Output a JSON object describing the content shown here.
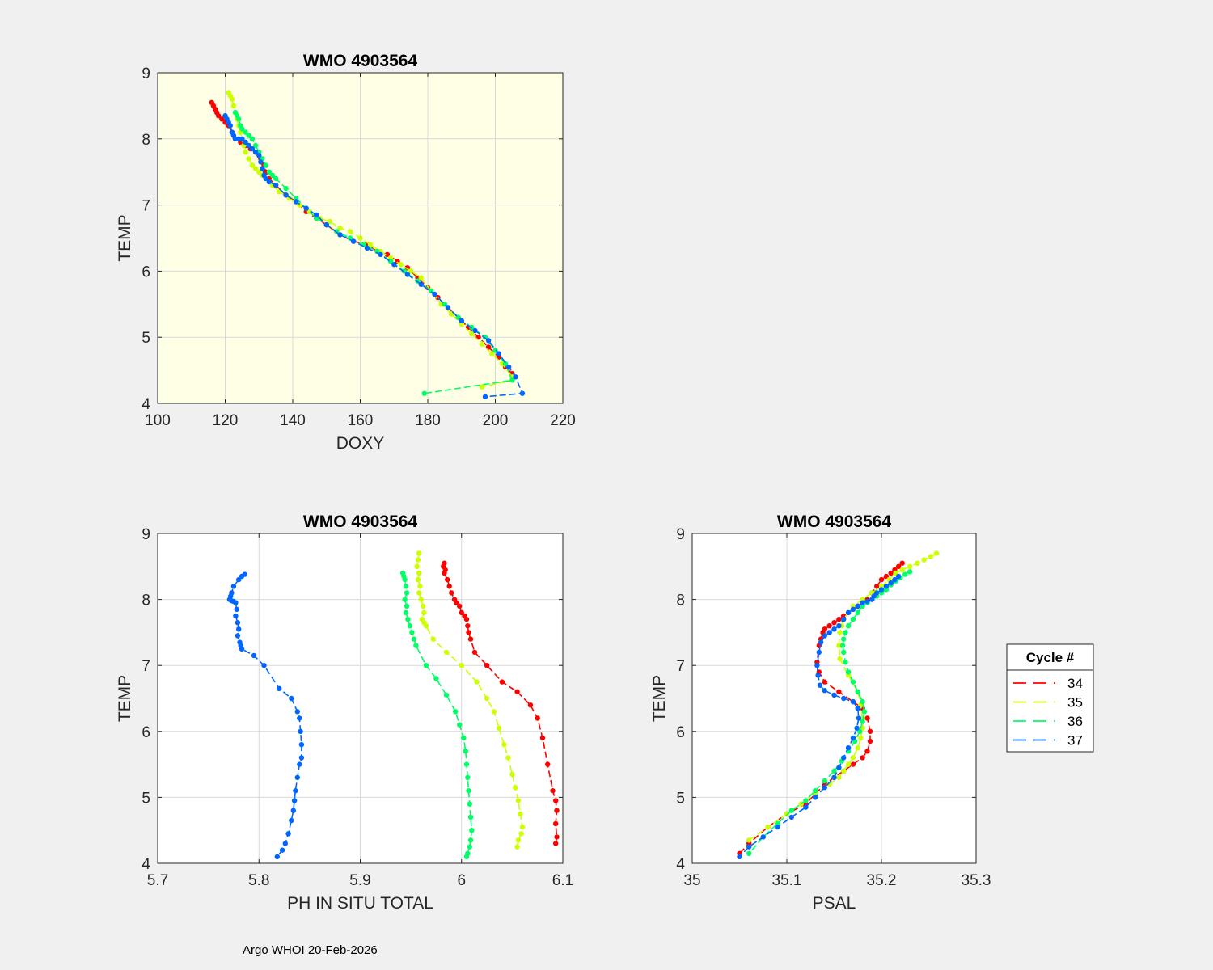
{
  "footer": "Argo WHOI 20-Feb-2026",
  "legend": {
    "title": "Cycle #",
    "entries": [
      {
        "label": "34",
        "color": "#ff0000"
      },
      {
        "label": "35",
        "color": "#ccff00"
      },
      {
        "label": "36",
        "color": "#00ff66"
      },
      {
        "label": "37",
        "color": "#0066ff"
      }
    ]
  },
  "chart_data": [
    {
      "type": "line",
      "title": "WMO 4903564",
      "xlabel": "DOXY",
      "ylabel": "TEMP",
      "xlim": [
        100,
        220
      ],
      "ylim": [
        4,
        9
      ],
      "xticks": [
        100,
        120,
        140,
        160,
        180,
        200,
        220
      ],
      "yticks": [
        4,
        5,
        6,
        7,
        8,
        9
      ],
      "grid": true,
      "background": "#ffffe6",
      "series": [
        {
          "name": "34",
          "color": "#ff0000",
          "x": [
            116,
            116.5,
            117,
            117.5,
            118,
            119,
            120,
            121,
            122,
            123,
            124.5,
            126,
            127.5,
            129,
            130.5,
            131.5,
            132,
            133,
            135,
            138,
            141,
            144,
            147,
            150,
            154,
            158,
            162,
            165,
            168,
            171,
            174,
            177,
            180,
            183,
            186,
            189,
            192,
            195,
            198,
            201,
            203,
            205
          ],
          "y": [
            8.55,
            8.5,
            8.45,
            8.4,
            8.35,
            8.3,
            8.25,
            8.2,
            8.1,
            8.0,
            7.95,
            7.9,
            7.85,
            7.8,
            7.7,
            7.6,
            7.5,
            7.4,
            7.3,
            7.15,
            7.05,
            6.9,
            6.8,
            6.7,
            6.55,
            6.45,
            6.4,
            6.3,
            6.25,
            6.15,
            6.05,
            5.9,
            5.75,
            5.6,
            5.45,
            5.3,
            5.15,
            5.0,
            4.85,
            4.7,
            4.55,
            4.45
          ]
        },
        {
          "name": "35",
          "color": "#ccff00",
          "x": [
            121,
            121.5,
            122,
            122.5,
            123,
            123.5,
            124,
            124.5,
            125,
            125.5,
            126,
            127,
            128,
            129,
            130,
            131,
            132,
            134,
            136,
            139,
            142,
            145,
            148,
            151,
            154,
            157,
            160,
            163,
            166,
            169,
            172,
            175,
            178,
            181,
            184,
            187,
            190,
            193,
            196,
            199,
            202,
            205,
            205,
            196
          ],
          "y": [
            8.7,
            8.65,
            8.6,
            8.5,
            8.4,
            8.3,
            8.2,
            8.1,
            8.0,
            7.9,
            7.8,
            7.7,
            7.6,
            7.55,
            7.5,
            7.45,
            7.4,
            7.3,
            7.2,
            7.1,
            7.0,
            6.9,
            6.8,
            6.75,
            6.65,
            6.6,
            6.5,
            6.4,
            6.3,
            6.2,
            6.1,
            6.0,
            5.9,
            5.7,
            5.5,
            5.35,
            5.2,
            5.05,
            4.9,
            4.75,
            4.6,
            4.4,
            4.35,
            4.25
          ]
        },
        {
          "name": "36",
          "color": "#00ff66",
          "x": [
            123,
            123.5,
            124,
            124.5,
            125,
            126,
            127,
            128,
            129,
            130,
            131,
            132,
            133,
            134,
            135,
            138,
            141,
            144,
            147,
            150,
            153,
            157,
            161,
            165,
            169,
            173,
            177,
            181,
            185,
            189,
            193,
            197,
            200,
            203,
            205,
            179
          ],
          "y": [
            8.4,
            8.35,
            8.3,
            8.2,
            8.15,
            8.1,
            8.05,
            8.0,
            7.9,
            7.8,
            7.7,
            7.6,
            7.5,
            7.45,
            7.4,
            7.25,
            7.1,
            6.95,
            6.8,
            6.7,
            6.6,
            6.5,
            6.4,
            6.3,
            6.15,
            6.0,
            5.85,
            5.7,
            5.5,
            5.3,
            5.15,
            5.0,
            4.8,
            4.6,
            4.35,
            4.15
          ]
        },
        {
          "name": "37",
          "color": "#0066ff",
          "x": [
            120,
            120.5,
            121,
            121.5,
            122,
            122.5,
            123,
            124,
            125,
            126,
            127,
            128,
            129,
            130,
            130.5,
            131,
            131.5,
            132,
            133,
            135,
            138,
            141,
            144,
            147,
            150,
            154,
            158,
            162,
            166,
            170,
            174,
            178,
            182,
            186,
            190,
            194,
            198,
            201,
            204,
            206,
            208,
            197
          ],
          "y": [
            8.35,
            8.3,
            8.25,
            8.2,
            8.1,
            8.05,
            8.0,
            8.0,
            8.0,
            7.95,
            7.9,
            7.85,
            7.8,
            7.75,
            7.65,
            7.55,
            7.45,
            7.4,
            7.35,
            7.3,
            7.15,
            7.05,
            6.95,
            6.85,
            6.7,
            6.55,
            6.45,
            6.35,
            6.25,
            6.1,
            5.95,
            5.8,
            5.65,
            5.45,
            5.25,
            5.1,
            4.95,
            4.75,
            4.55,
            4.4,
            4.15,
            4.1
          ]
        }
      ]
    },
    {
      "type": "line",
      "title": "WMO 4903564",
      "xlabel": "PH IN SITU TOTAL",
      "ylabel": "TEMP",
      "xlim": [
        5.7,
        6.1
      ],
      "ylim": [
        4,
        9
      ],
      "xticks": [
        5.7,
        5.8,
        5.9,
        6.0,
        6.1
      ],
      "yticks": [
        4,
        5,
        6,
        7,
        8,
        9
      ],
      "grid": true,
      "background": "#ffffff",
      "series": [
        {
          "name": "34",
          "color": "#ff0000",
          "x": [
            5.983,
            5.982,
            5.984,
            5.983,
            5.986,
            5.988,
            5.99,
            5.993,
            5.995,
            5.998,
            6.0,
            6.003,
            6.005,
            6.006,
            6.007,
            6.009,
            6.013,
            6.025,
            6.04,
            6.055,
            6.068,
            6.075,
            6.08,
            6.085,
            6.09,
            6.093,
            6.094,
            6.093,
            6.094,
            6.093
          ],
          "y": [
            8.55,
            8.5,
            8.45,
            8.4,
            8.3,
            8.2,
            8.1,
            8.0,
            7.95,
            7.9,
            7.8,
            7.75,
            7.7,
            7.6,
            7.5,
            7.4,
            7.2,
            7.0,
            6.75,
            6.6,
            6.4,
            6.2,
            5.9,
            5.5,
            5.1,
            4.95,
            4.8,
            4.6,
            4.4,
            4.3
          ]
        },
        {
          "name": "35",
          "color": "#ccff00",
          "x": [
            5.958,
            5.957,
            5.956,
            5.958,
            5.957,
            5.959,
            5.958,
            5.96,
            5.962,
            5.963,
            5.961,
            5.963,
            5.965,
            5.972,
            5.985,
            6.0,
            6.015,
            6.025,
            6.032,
            6.037,
            6.042,
            6.046,
            6.05,
            6.053,
            6.056,
            6.058,
            6.06,
            6.059,
            6.056,
            6.055
          ],
          "y": [
            8.7,
            8.6,
            8.5,
            8.4,
            8.3,
            8.2,
            8.1,
            8.0,
            7.9,
            7.8,
            7.7,
            7.65,
            7.6,
            7.4,
            7.2,
            7.0,
            6.75,
            6.5,
            6.3,
            6.05,
            5.8,
            5.6,
            5.35,
            5.15,
            4.95,
            4.75,
            4.55,
            4.45,
            4.35,
            4.25
          ]
        },
        {
          "name": "36",
          "color": "#00ff66",
          "x": [
            5.942,
            5.943,
            5.944,
            5.945,
            5.946,
            5.944,
            5.946,
            5.945,
            5.947,
            5.949,
            5.951,
            5.953,
            5.955,
            5.965,
            5.975,
            5.985,
            5.994,
            5.998,
            6.002,
            6.004,
            6.005,
            6.006,
            6.007,
            6.008,
            6.009,
            6.01,
            6.009,
            6.008,
            6.006,
            6.005
          ],
          "y": [
            8.4,
            8.35,
            8.3,
            8.2,
            8.1,
            8.0,
            7.9,
            7.8,
            7.7,
            7.6,
            7.5,
            7.4,
            7.3,
            7.0,
            6.8,
            6.55,
            6.3,
            6.1,
            5.9,
            5.7,
            5.5,
            5.3,
            5.1,
            4.9,
            4.7,
            4.5,
            4.35,
            4.25,
            4.15,
            4.1
          ]
        },
        {
          "name": "37",
          "color": "#0066ff",
          "x": [
            5.786,
            5.783,
            5.78,
            5.775,
            5.773,
            5.772,
            5.771,
            5.773,
            5.775,
            5.777,
            5.778,
            5.777,
            5.779,
            5.78,
            5.779,
            5.781,
            5.782,
            5.783,
            5.795,
            5.805,
            5.82,
            5.832,
            5.838,
            5.84,
            5.841,
            5.842,
            5.842,
            5.84,
            5.838,
            5.836,
            5.835,
            5.834,
            5.832,
            5.829,
            5.826,
            5.823,
            5.818
          ],
          "y": [
            8.38,
            8.35,
            8.3,
            8.2,
            8.1,
            8.05,
            8.0,
            7.98,
            7.97,
            7.95,
            7.85,
            7.75,
            7.65,
            7.55,
            7.45,
            7.35,
            7.3,
            7.25,
            7.15,
            7.0,
            6.65,
            6.5,
            6.3,
            6.2,
            6.0,
            5.8,
            5.6,
            5.5,
            5.3,
            5.1,
            4.95,
            4.8,
            4.65,
            4.45,
            4.3,
            4.2,
            4.1
          ]
        }
      ]
    },
    {
      "type": "line",
      "title": "WMO 4903564",
      "xlabel": "PSAL",
      "ylabel": "TEMP",
      "xlim": [
        35,
        35.3
      ],
      "ylim": [
        4,
        9
      ],
      "xticks": [
        35,
        35.1,
        35.2,
        35.3
      ],
      "yticks": [
        4,
        5,
        6,
        7,
        8,
        9
      ],
      "grid": true,
      "background": "#ffffff",
      "series": [
        {
          "name": "34",
          "color": "#ff0000",
          "x": [
            35.222,
            35.218,
            35.214,
            35.21,
            35.205,
            35.2,
            35.195,
            35.19,
            35.185,
            35.18,
            35.175,
            35.17,
            35.165,
            35.16,
            35.155,
            35.15,
            35.145,
            35.14,
            35.138,
            35.136,
            35.134,
            35.132,
            35.134,
            35.14,
            35.155,
            35.17,
            35.18,
            35.185,
            35.188,
            35.188,
            35.185,
            35.18,
            35.17,
            35.16,
            35.15,
            35.14,
            35.13,
            35.12,
            35.1,
            35.08,
            35.06,
            35.05
          ],
          "y": [
            8.55,
            8.5,
            8.45,
            8.4,
            8.35,
            8.3,
            8.2,
            8.1,
            8.0,
            7.95,
            7.9,
            7.85,
            7.8,
            7.75,
            7.7,
            7.65,
            7.6,
            7.55,
            7.5,
            7.4,
            7.3,
            7.05,
            6.9,
            6.75,
            6.6,
            6.45,
            6.35,
            6.2,
            6.0,
            5.85,
            5.7,
            5.6,
            5.5,
            5.4,
            5.3,
            5.2,
            5.05,
            4.9,
            4.75,
            4.55,
            4.3,
            4.15
          ]
        },
        {
          "name": "35",
          "color": "#ccff00",
          "x": [
            35.258,
            35.252,
            35.245,
            35.238,
            35.23,
            35.222,
            35.215,
            35.208,
            35.2,
            35.19,
            35.18,
            35.17,
            35.165,
            35.16,
            35.158,
            35.156,
            35.155,
            35.156,
            35.165,
            35.175,
            35.178,
            35.18,
            35.18,
            35.178,
            35.175,
            35.17,
            35.165,
            35.16,
            35.155,
            35.145,
            35.13,
            35.115,
            35.1,
            35.08,
            35.06
          ],
          "y": [
            8.7,
            8.65,
            8.6,
            8.55,
            8.5,
            8.45,
            8.4,
            8.3,
            8.2,
            8.1,
            8.0,
            7.9,
            7.8,
            7.7,
            7.6,
            7.5,
            7.3,
            7.1,
            6.85,
            6.6,
            6.4,
            6.2,
            6.05,
            5.9,
            5.75,
            5.6,
            5.5,
            5.4,
            5.3,
            5.2,
            5.05,
            4.9,
            4.75,
            4.55,
            4.35
          ]
        },
        {
          "name": "36",
          "color": "#00ff66",
          "x": [
            35.23,
            35.225,
            35.22,
            35.215,
            35.21,
            35.205,
            35.2,
            35.195,
            35.19,
            35.185,
            35.18,
            35.175,
            35.17,
            35.165,
            35.162,
            35.16,
            35.159,
            35.16,
            35.162,
            35.165,
            35.17,
            35.175,
            35.18,
            35.182,
            35.18,
            35.177,
            35.172,
            35.165,
            35.158,
            35.15,
            35.14,
            35.13,
            35.12,
            35.105,
            35.09,
            35.075,
            35.06
          ],
          "y": [
            8.42,
            8.38,
            8.33,
            8.28,
            8.22,
            8.15,
            8.1,
            8.05,
            8.0,
            7.95,
            7.9,
            7.8,
            7.7,
            7.6,
            7.5,
            7.4,
            7.3,
            7.2,
            7.05,
            6.9,
            6.75,
            6.6,
            6.45,
            6.3,
            6.15,
            6.0,
            5.85,
            5.7,
            5.55,
            5.4,
            5.25,
            5.1,
            4.95,
            4.8,
            4.6,
            4.4,
            4.15
          ]
        },
        {
          "name": "37",
          "color": "#0066ff",
          "x": [
            35.218,
            35.214,
            35.21,
            35.205,
            35.2,
            35.195,
            35.192,
            35.19,
            35.185,
            35.18,
            35.175,
            35.17,
            35.165,
            35.16,
            35.155,
            35.15,
            35.145,
            35.14,
            35.136,
            35.134,
            35.132,
            35.133,
            35.135,
            35.14,
            35.15,
            35.16,
            35.17,
            35.175,
            35.176,
            35.174,
            35.17,
            35.165,
            35.16,
            35.155,
            35.15,
            35.14,
            35.13,
            35.12,
            35.105,
            35.09,
            35.075,
            35.06,
            35.05
          ],
          "y": [
            8.35,
            8.3,
            8.25,
            8.2,
            8.15,
            8.1,
            8.05,
            8.0,
            7.97,
            7.95,
            7.9,
            7.85,
            7.8,
            7.7,
            7.6,
            7.55,
            7.5,
            7.45,
            7.35,
            7.2,
            7.0,
            6.85,
            6.7,
            6.62,
            6.55,
            6.5,
            6.45,
            6.35,
            6.2,
            6.05,
            5.9,
            5.75,
            5.6,
            5.45,
            5.3,
            5.15,
            5.0,
            4.85,
            4.7,
            4.55,
            4.4,
            4.25,
            4.1
          ]
        }
      ]
    }
  ]
}
